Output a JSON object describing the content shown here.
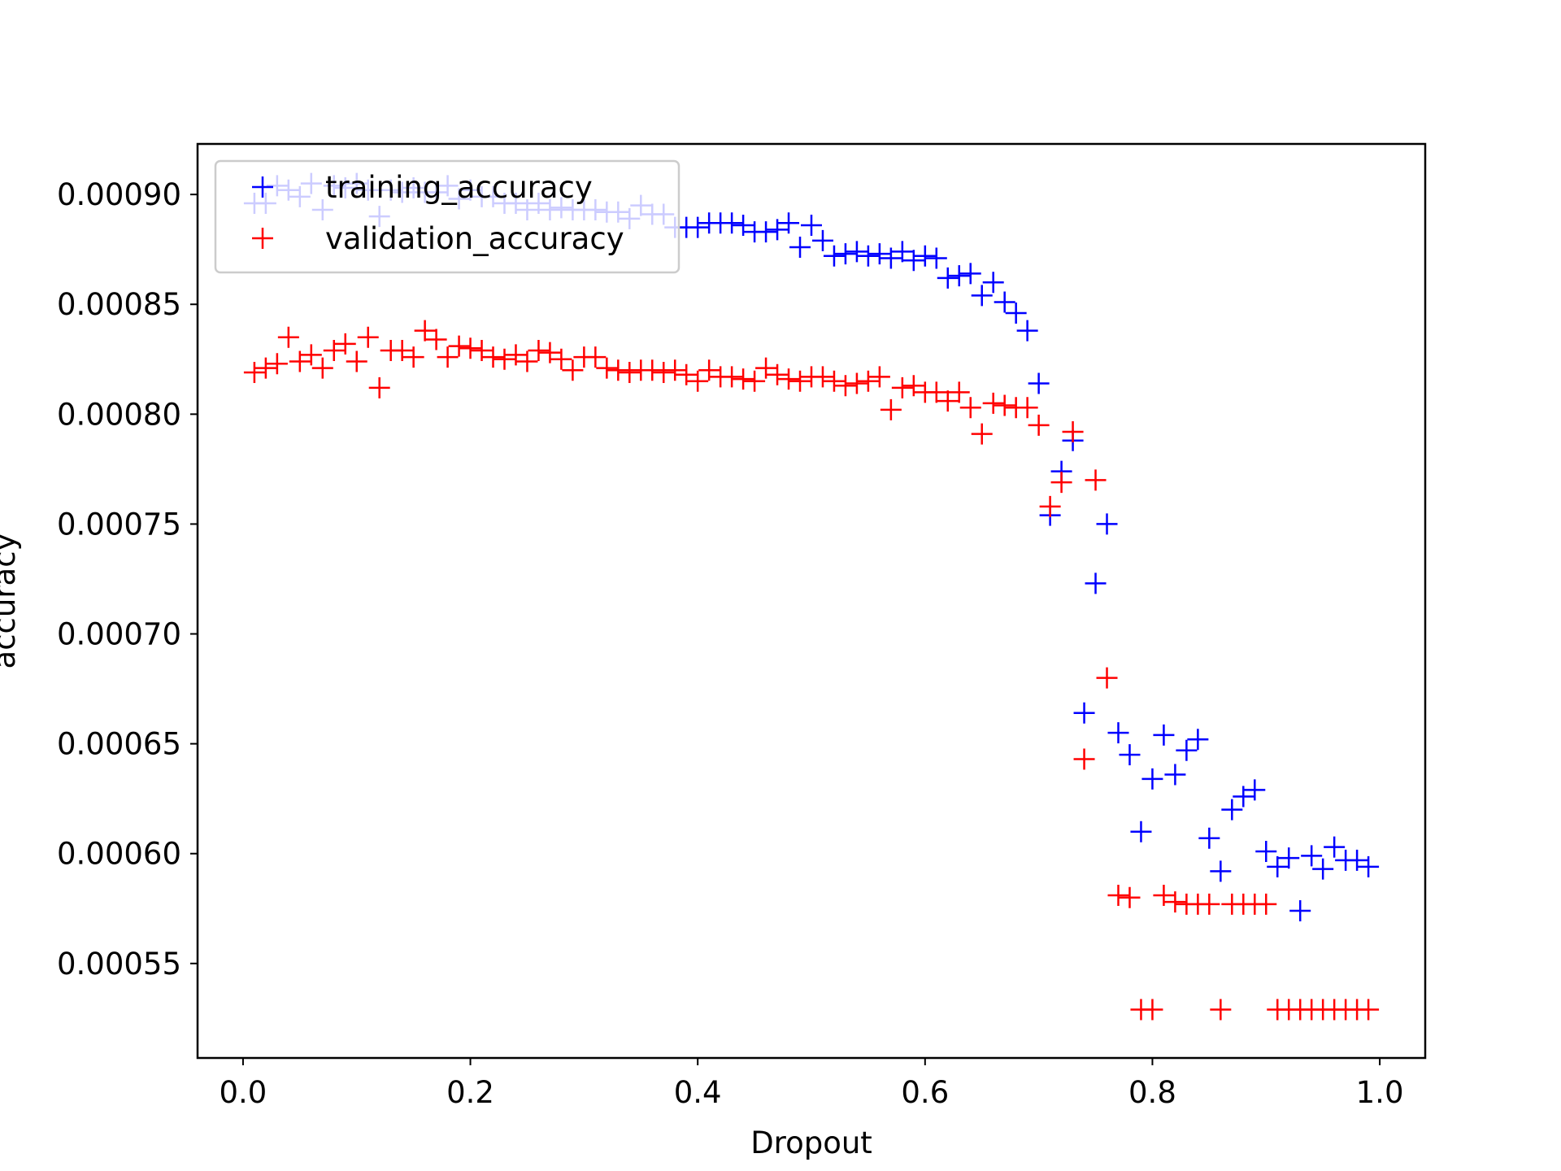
{
  "chart_data": {
    "type": "scatter",
    "title": "",
    "xlabel": "Dropout",
    "ylabel": "accuracy",
    "xlim": [
      -0.04,
      1.04
    ],
    "ylim": [
      0.000507,
      0.000923
    ],
    "xticks": [
      0.0,
      0.2,
      0.4,
      0.6,
      0.8,
      1.0
    ],
    "xtick_labels": [
      "0.0",
      "0.2",
      "0.4",
      "0.6",
      "0.8",
      "1.0"
    ],
    "yticks": [
      0.00055,
      0.0006,
      0.00065,
      0.0007,
      0.00075,
      0.0008,
      0.00085,
      0.0009
    ],
    "ytick_labels": [
      "0.00055",
      "0.00060",
      "0.00065",
      "0.00070",
      "0.00075",
      "0.00080",
      "0.00085",
      "0.00090"
    ],
    "grid": false,
    "legend_position": "top-left",
    "marker": "+",
    "x": [
      0.01,
      0.02,
      0.03,
      0.04,
      0.05,
      0.06,
      0.07,
      0.08,
      0.09,
      0.1,
      0.11,
      0.12,
      0.13,
      0.14,
      0.15,
      0.16,
      0.17,
      0.18,
      0.19,
      0.2,
      0.21,
      0.22,
      0.23,
      0.24,
      0.25,
      0.26,
      0.27,
      0.28,
      0.29,
      0.3,
      0.31,
      0.32,
      0.33,
      0.34,
      0.35,
      0.36,
      0.37,
      0.38,
      0.39,
      0.4,
      0.41,
      0.42,
      0.43,
      0.44,
      0.45,
      0.46,
      0.47,
      0.48,
      0.49,
      0.5,
      0.51,
      0.52,
      0.53,
      0.54,
      0.55,
      0.56,
      0.57,
      0.58,
      0.59,
      0.6,
      0.61,
      0.62,
      0.63,
      0.64,
      0.65,
      0.66,
      0.67,
      0.68,
      0.69,
      0.7,
      0.71,
      0.72,
      0.73,
      0.74,
      0.75,
      0.76,
      0.77,
      0.78,
      0.79,
      0.8,
      0.81,
      0.82,
      0.83,
      0.84,
      0.85,
      0.86,
      0.87,
      0.88,
      0.89,
      0.9,
      0.91,
      0.92,
      0.93,
      0.94,
      0.95,
      0.96,
      0.97,
      0.98,
      0.99
    ],
    "series": [
      {
        "name": "training_accuracy",
        "color": "#0000ff",
        "values": [
          0.000896,
          0.000896,
          0.000904,
          0.000902,
          0.000899,
          0.000905,
          0.000893,
          0.000904,
          0.000903,
          0.000905,
          0.000902,
          0.00089,
          0.000902,
          0.000901,
          0.000903,
          0.000901,
          0.000901,
          0.000904,
          0.000898,
          0.000902,
          0.000899,
          0.000899,
          0.000896,
          0.000896,
          0.000893,
          0.000896,
          0.000893,
          0.000894,
          0.000893,
          0.000893,
          0.000893,
          0.000892,
          0.000892,
          0.000889,
          0.000895,
          0.000891,
          0.000891,
          0.000885,
          0.000885,
          0.000885,
          0.000887,
          0.000887,
          0.000887,
          0.000886,
          0.000883,
          0.000883,
          0.000884,
          0.000887,
          0.000876,
          0.000886,
          0.000879,
          0.000872,
          0.000873,
          0.000874,
          0.000872,
          0.000873,
          0.000871,
          0.000874,
          0.00087,
          0.000872,
          0.000871,
          0.000862,
          0.000863,
          0.000864,
          0.000854,
          0.00086,
          0.000851,
          0.000846,
          0.000838,
          0.000814,
          0.000754,
          0.000774,
          0.000788,
          0.000664,
          0.000723,
          0.00075,
          0.000655,
          0.000645,
          0.00061,
          0.000634,
          0.000654,
          0.000636,
          0.000647,
          0.000652,
          0.000607,
          0.000592,
          0.00062,
          0.000626,
          0.000629,
          0.000601,
          0.000594,
          0.000598,
          0.000574,
          0.000599,
          0.000593,
          0.000603,
          0.000597,
          0.000597,
          0.000594
        ]
      },
      {
        "name": "validation_accuracy",
        "color": "#ff0000",
        "values": [
          0.000819,
          0.000821,
          0.000823,
          0.000835,
          0.000824,
          0.000827,
          0.000821,
          0.000829,
          0.000832,
          0.000824,
          0.000835,
          0.000812,
          0.000829,
          0.000829,
          0.000826,
          0.000838,
          0.000834,
          0.000826,
          0.000831,
          0.00083,
          0.000829,
          0.000826,
          0.000825,
          0.000827,
          0.000824,
          0.000829,
          0.000828,
          0.000825,
          0.00082,
          0.000826,
          0.000826,
          0.000821,
          0.00082,
          0.000819,
          0.00082,
          0.00082,
          0.000819,
          0.00082,
          0.000818,
          0.000815,
          0.00082,
          0.000817,
          0.000817,
          0.000816,
          0.000815,
          0.000821,
          0.000818,
          0.000816,
          0.000815,
          0.000817,
          0.000817,
          0.000815,
          0.000813,
          0.000814,
          0.000815,
          0.000817,
          0.000802,
          0.000812,
          0.000813,
          0.00081,
          0.00081,
          0.000806,
          0.00081,
          0.000803,
          0.000791,
          0.000805,
          0.000804,
          0.000803,
          0.000803,
          0.000795,
          0.000758,
          0.000769,
          0.000792,
          0.000643,
          0.00077,
          0.00068,
          0.000581,
          0.00058,
          0.000529,
          0.000529,
          0.000581,
          0.000578,
          0.000577,
          0.000577,
          0.000577,
          0.000529,
          0.000577,
          0.000577,
          0.000577,
          0.000577,
          0.000529,
          0.000529,
          0.000529,
          0.000529,
          0.000529,
          0.000529,
          0.000529,
          0.000529,
          0.000529
        ]
      }
    ]
  }
}
